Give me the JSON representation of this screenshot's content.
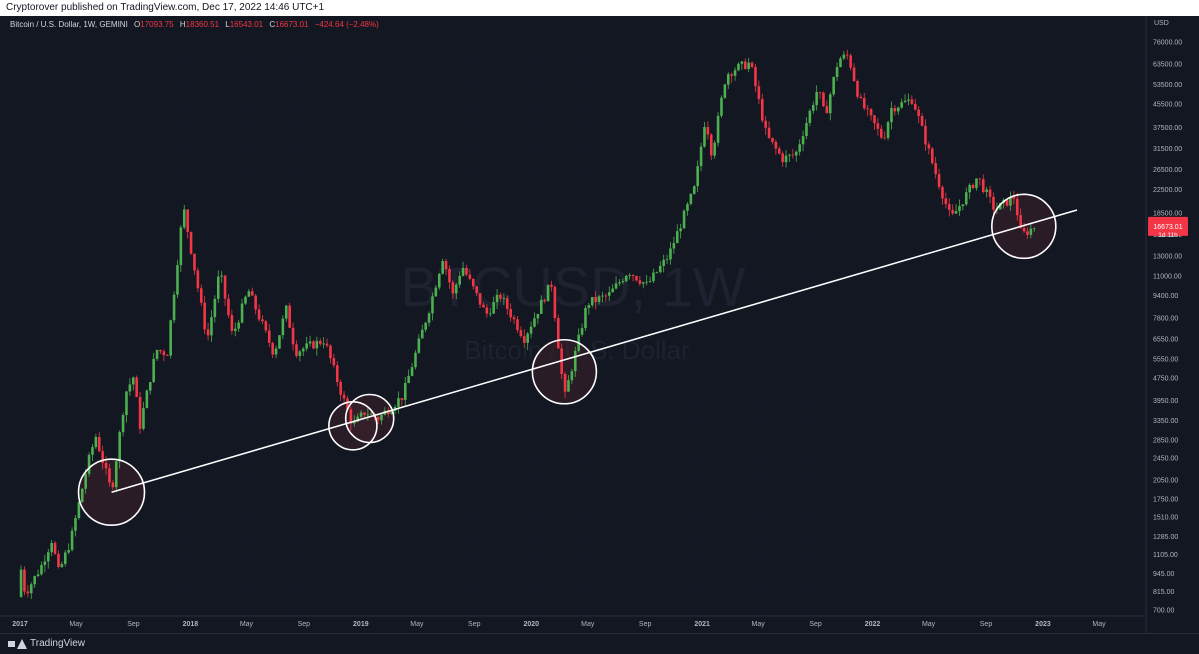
{
  "header": {
    "published": "Cryptorover published on TradingView.com, Dec 17, 2022 14:46 UTC+1"
  },
  "symbol": {
    "name": "Bitcoin / U.S. Dollar, 1W, GEMINI",
    "o_label": "O",
    "o_value": "17093.75",
    "h_label": "H",
    "h_value": "18360.51",
    "l_label": "L",
    "l_value": "16543.01",
    "c_label": "C",
    "c_value": "16673.01",
    "change": "−424.64 (−2.48%)"
  },
  "watermark": {
    "ticker": "BTCUSD, 1W",
    "description": "Bitcoin / U.S. Dollar"
  },
  "price_tag": {
    "price": "16673.01",
    "countdown": "1d 11h"
  },
  "footer": {
    "brand": "TradingView"
  },
  "colors": {
    "background": "#131722",
    "up": "#4caf50",
    "down": "#f23645",
    "trendline": "#ffffff",
    "circle_fill": "#3a1f2b",
    "grid": "#1e222d",
    "axis_text": "#b2b5be"
  },
  "chart_data": {
    "type": "line",
    "y_scale": "log",
    "currency": "USD",
    "y_ticks": [
      76000,
      63500,
      53500,
      45500,
      37500,
      31500,
      26500,
      22500,
      18500,
      15500,
      13000,
      11000,
      9400,
      7800,
      6550,
      5550,
      4750,
      3950,
      3350,
      2850,
      2450,
      2050,
      1750,
      1510,
      1285,
      1105,
      945,
      815,
      700
    ],
    "y_tick_labels": [
      "76000.00",
      "63500.00",
      "53500.00",
      "45500.00",
      "37500.00",
      "31500.00",
      "26500.00",
      "22500.00",
      "18500.00",
      "15500.00",
      "13000.00",
      "11000.00",
      "9400.00",
      "7800.00",
      "6550.00",
      "5550.00",
      "4750.00",
      "3950.00",
      "3350.00",
      "2850.00",
      "2450.00",
      "2050.00",
      "1750.00",
      "1510.00",
      "1285.00",
      "1105.00",
      "945.00",
      "815.00",
      "700.00"
    ],
    "x_ticks": [
      "2017-01-01",
      "2017-05-01",
      "2017-09-01",
      "2018-01-01",
      "2018-05-01",
      "2018-09-01",
      "2019-01-01",
      "2019-05-01",
      "2019-09-01",
      "2020-01-01",
      "2020-05-01",
      "2020-09-01",
      "2021-01-01",
      "2021-05-01",
      "2021-09-01",
      "2022-01-01",
      "2022-05-01",
      "2022-09-01",
      "2023-01-01",
      "2023-05-01"
    ],
    "x_tick_labels": [
      "2017",
      "May",
      "Sep",
      "2018",
      "May",
      "Sep",
      "2019",
      "May",
      "Sep",
      "2020",
      "May",
      "Sep",
      "2021",
      "May",
      "Sep",
      "2022",
      "May",
      "Sep",
      "2023",
      "May"
    ],
    "x_range": [
      "2017-01-01",
      "2023-06-15"
    ],
    "price_path": [
      [
        "2016-12-27",
        780
      ],
      [
        "2017-01-04",
        1000
      ],
      [
        "2017-01-12",
        800
      ],
      [
        "2017-02-15",
        1000
      ],
      [
        "2017-03-10",
        1250
      ],
      [
        "2017-03-25",
        950
      ],
      [
        "2017-04-20",
        1250
      ],
      [
        "2017-05-25",
        2300
      ],
      [
        "2017-06-12",
        2950
      ],
      [
        "2017-07-16",
        1850
      ],
      [
        "2017-08-15",
        4200
      ],
      [
        "2017-09-01",
        4800
      ],
      [
        "2017-09-15",
        3200
      ],
      [
        "2017-10-20",
        6000
      ],
      [
        "2017-11-12",
        5800
      ],
      [
        "2017-12-17",
        19500
      ],
      [
        "2018-02-06",
        6500
      ],
      [
        "2018-03-05",
        11500
      ],
      [
        "2018-04-01",
        6700
      ],
      [
        "2018-05-05",
        9800
      ],
      [
        "2018-06-29",
        5800
      ],
      [
        "2018-07-25",
        8400
      ],
      [
        "2018-08-14",
        5900
      ],
      [
        "2018-10-15",
        6500
      ],
      [
        "2018-11-20",
        4200
      ],
      [
        "2018-12-15",
        3200
      ],
      [
        "2019-01-10",
        3600
      ],
      [
        "2019-02-07",
        3400
      ],
      [
        "2019-04-01",
        4100
      ],
      [
        "2019-05-30",
        8700
      ],
      [
        "2019-06-26",
        13000
      ],
      [
        "2019-07-17",
        9400
      ],
      [
        "2019-08-06",
        12000
      ],
      [
        "2019-09-26",
        8000
      ],
      [
        "2019-10-26",
        9400
      ],
      [
        "2019-12-17",
        6600
      ],
      [
        "2020-02-13",
        10400
      ],
      [
        "2020-03-12",
        4000
      ],
      [
        "2020-04-30",
        8800
      ],
      [
        "2020-06-15",
        9400
      ],
      [
        "2020-07-27",
        11500
      ],
      [
        "2020-09-05",
        10200
      ],
      [
        "2020-10-21",
        13000
      ],
      [
        "2020-12-17",
        23000
      ],
      [
        "2021-01-08",
        41000
      ],
      [
        "2021-01-22",
        30000
      ],
      [
        "2021-02-21",
        58000
      ],
      [
        "2021-03-13",
        61000
      ],
      [
        "2021-04-14",
        64000
      ],
      [
        "2021-05-19",
        35000
      ],
      [
        "2021-06-22",
        29000
      ],
      [
        "2021-07-20",
        30000
      ],
      [
        "2021-09-06",
        52000
      ],
      [
        "2021-09-21",
        41000
      ],
      [
        "2021-10-20",
        66000
      ],
      [
        "2021-11-10",
        68000
      ],
      [
        "2021-12-04",
        47000
      ],
      [
        "2022-01-24",
        34000
      ],
      [
        "2022-02-10",
        44000
      ],
      [
        "2022-03-28",
        47500
      ],
      [
        "2022-05-12",
        27000
      ],
      [
        "2022-06-18",
        17600
      ],
      [
        "2022-08-14",
        25000
      ],
      [
        "2022-09-20",
        19000
      ],
      [
        "2022-11-05",
        21400
      ],
      [
        "2022-11-09",
        16000
      ],
      [
        "2022-11-21",
        15600
      ],
      [
        "2022-12-17",
        16673
      ]
    ],
    "trendline": {
      "start": [
        "2017-07-16",
        1850
      ],
      "end": [
        "2023-03-15",
        19000
      ]
    },
    "highlight_circles": [
      {
        "date": "2017-07-16",
        "price": 1850
      },
      {
        "date": "2018-12-15",
        "price": 3200
      },
      {
        "date": "2019-01-20",
        "price": 3400
      },
      {
        "date": "2020-03-12",
        "price": 5000
      },
      {
        "date": "2022-11-21",
        "price": 16600
      }
    ],
    "grid": false,
    "legend": "top-left"
  }
}
